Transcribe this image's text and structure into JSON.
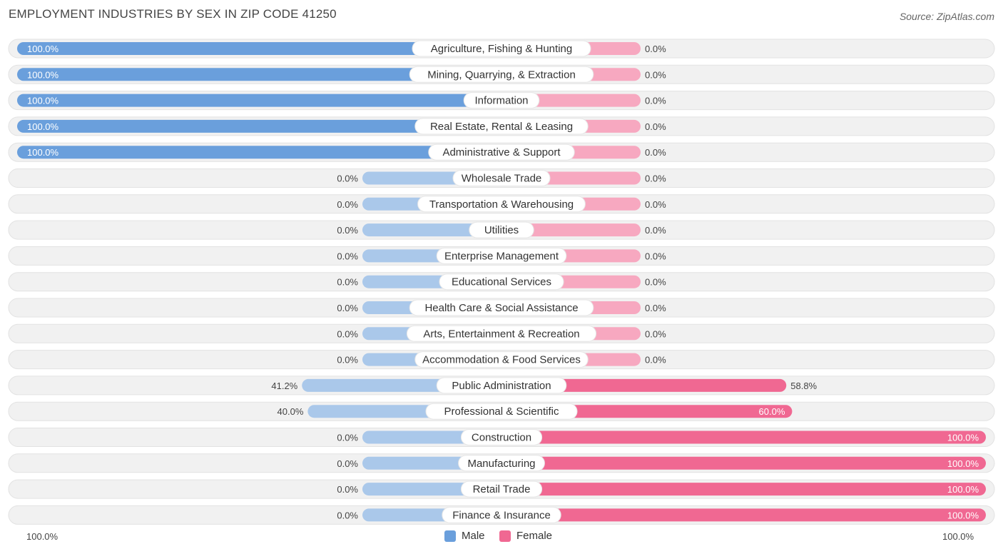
{
  "header": {
    "title": "EMPLOYMENT INDUSTRIES BY SEX IN ZIP CODE 41250",
    "source": "Source: ZipAtlas.com"
  },
  "legend": {
    "male_label": "Male",
    "female_label": "Female"
  },
  "axis": {
    "left_label": "100.0%",
    "right_label": "100.0%"
  },
  "colors": {
    "male_strong": "#6a9fdc",
    "male_light": "#aac8ea",
    "female_strong": "#f06892",
    "female_light": "#f7a8c0",
    "row_bg": "#f1f1f1"
  },
  "chart_data": {
    "type": "bar",
    "title": "EMPLOYMENT INDUSTRIES BY SEX IN ZIP CODE 41250",
    "categories": [
      "Agriculture, Fishing & Hunting",
      "Mining, Quarrying, & Extraction",
      "Information",
      "Real Estate, Rental & Leasing",
      "Administrative & Support",
      "Wholesale Trade",
      "Transportation & Warehousing",
      "Utilities",
      "Enterprise Management",
      "Educational Services",
      "Health Care & Social Assistance",
      "Arts, Entertainment & Recreation",
      "Accommodation & Food Services",
      "Public Administration",
      "Professional & Scientific",
      "Construction",
      "Manufacturing",
      "Retail Trade",
      "Finance & Insurance"
    ],
    "series": [
      {
        "name": "Male",
        "values": [
          100.0,
          100.0,
          100.0,
          100.0,
          100.0,
          0.0,
          0.0,
          0.0,
          0.0,
          0.0,
          0.0,
          0.0,
          0.0,
          41.2,
          40.0,
          0.0,
          0.0,
          0.0,
          0.0
        ],
        "labels": [
          "100.0%",
          "100.0%",
          "100.0%",
          "100.0%",
          "100.0%",
          "0.0%",
          "0.0%",
          "0.0%",
          "0.0%",
          "0.0%",
          "0.0%",
          "0.0%",
          "0.0%",
          "41.2%",
          "40.0%",
          "0.0%",
          "0.0%",
          "0.0%",
          "0.0%"
        ]
      },
      {
        "name": "Female",
        "values": [
          0.0,
          0.0,
          0.0,
          0.0,
          0.0,
          0.0,
          0.0,
          0.0,
          0.0,
          0.0,
          0.0,
          0.0,
          0.0,
          58.8,
          60.0,
          100.0,
          100.0,
          100.0,
          100.0
        ],
        "labels": [
          "0.0%",
          "0.0%",
          "0.0%",
          "0.0%",
          "0.0%",
          "0.0%",
          "0.0%",
          "0.0%",
          "0.0%",
          "0.0%",
          "0.0%",
          "0.0%",
          "0.0%",
          "58.8%",
          "60.0%",
          "100.0%",
          "100.0%",
          "100.0%",
          "100.0%"
        ]
      }
    ],
    "xlim": [
      -100,
      100
    ],
    "legend_position": "bottom-center"
  }
}
